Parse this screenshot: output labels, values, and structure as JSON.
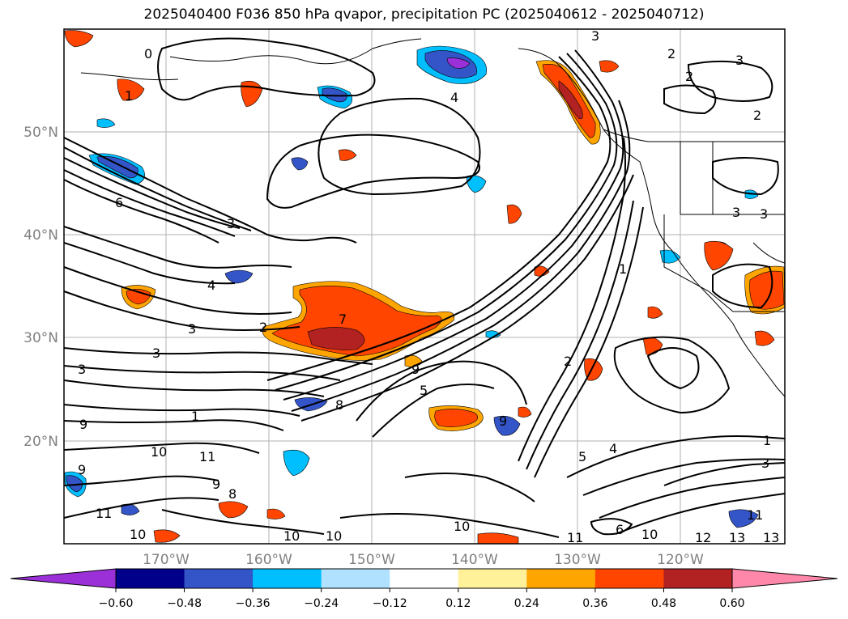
{
  "title": "2025040400 F036 850 hPa qvapor, precipitation PC (2025040612 - 2025040712)",
  "map": {
    "lat_labels": [
      "50°N",
      "40°N",
      "30°N",
      "20°N"
    ],
    "lon_labels": [
      "170°W",
      "160°W",
      "150°W",
      "140°W",
      "130°W",
      "120°W"
    ],
    "contour_labels": [
      "0",
      "1",
      "3",
      "4",
      "6",
      "3",
      "4",
      "3",
      "2",
      "3",
      "1",
      "3",
      "10",
      "11",
      "9",
      "8",
      "9",
      "10",
      "10",
      "10",
      "10",
      "11",
      "9",
      "11",
      "6",
      "10",
      "12",
      "13",
      "13",
      "11",
      "5",
      "4",
      "1",
      "3",
      "9",
      "7",
      "2",
      "1",
      "2",
      "3",
      "3",
      "2",
      "2",
      "3",
      "8",
      "9",
      "5"
    ]
  },
  "colorbar": {
    "ticks": [
      "−0.60",
      "−0.48",
      "−0.36",
      "−0.24",
      "−0.12",
      "0.12",
      "0.24",
      "0.36",
      "0.48",
      "0.60"
    ],
    "colors": [
      "#9b30d9",
      "#00008b",
      "#3455c8",
      "#00bfff",
      "#b0e2ff",
      "#ffffff",
      "#fff09a",
      "#ffa500",
      "#ff4500",
      "#b22222",
      "#ff88aa"
    ]
  }
}
